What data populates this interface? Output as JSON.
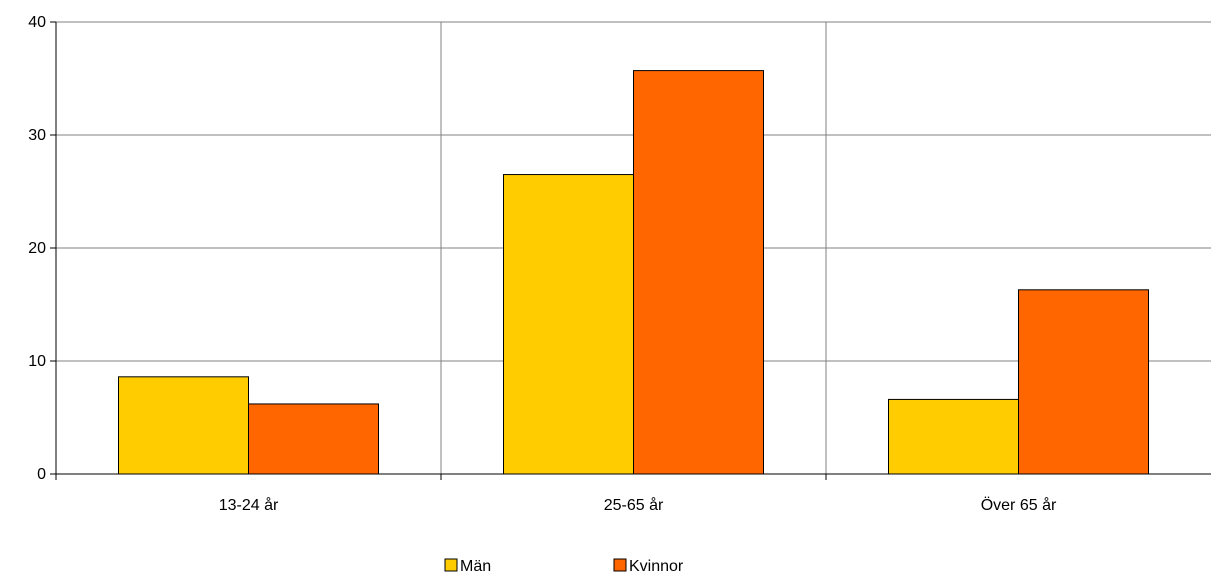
{
  "chart_data": {
    "type": "bar",
    "title": "",
    "xlabel": "",
    "ylabel": "",
    "categories": [
      "13-24 år",
      "25-65 år",
      "Över 65 år"
    ],
    "series": [
      {
        "name": "Män",
        "values": [
          8.6,
          26.5,
          6.6
        ],
        "color": "#FFCC00"
      },
      {
        "name": "Kvinnor",
        "values": [
          6.2,
          35.7,
          16.3
        ],
        "color": "#FF6600"
      }
    ],
    "ylim": [
      0,
      40
    ],
    "yticks": [
      0,
      10,
      20,
      30,
      40
    ],
    "grid": true,
    "legend_position": "bottom"
  }
}
